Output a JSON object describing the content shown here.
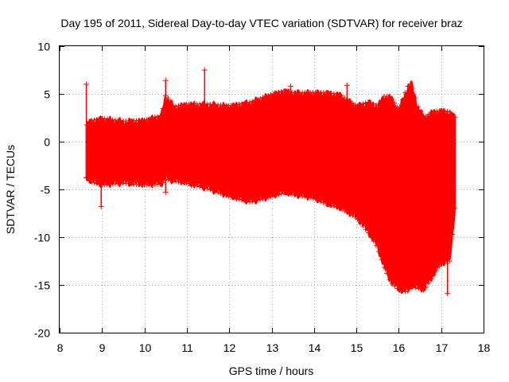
{
  "chart_data": {
    "type": "scatter",
    "title": "Day 195 of 2011, Sidereal Day-to-day VTEC variation (SDTVAR) for receiver braz",
    "xlabel": "GPS time / hours",
    "ylabel": "SDTVAR / TECUs",
    "xlim": [
      8,
      18
    ],
    "ylim": [
      -20,
      10
    ],
    "xticks": [
      8,
      9,
      10,
      11,
      12,
      13,
      14,
      15,
      16,
      17,
      18
    ],
    "yticks": [
      -20,
      -15,
      -10,
      -5,
      0,
      5,
      10
    ],
    "grid": true,
    "marker": "+",
    "color": "#ff0000",
    "envelope": {
      "x": [
        8.63,
        8.7,
        9.0,
        9.5,
        10.0,
        10.4,
        10.5,
        10.7,
        11.0,
        11.5,
        12.0,
        12.5,
        13.0,
        13.3,
        13.5,
        14.0,
        14.3,
        14.6,
        15.0,
        15.3,
        15.5,
        15.65,
        15.8,
        16.0,
        16.2,
        16.3,
        16.45,
        16.6,
        16.8,
        17.0,
        17.2,
        17.33
      ],
      "upper": [
        1.6,
        2.0,
        2.3,
        2.0,
        2.1,
        2.6,
        4.8,
        3.5,
        3.8,
        3.8,
        3.6,
        4.0,
        4.8,
        5.2,
        5.0,
        5.0,
        5.0,
        4.8,
        3.6,
        4.0,
        3.6,
        4.6,
        4.6,
        3.2,
        5.6,
        6.0,
        3.6,
        2.4,
        3.0,
        3.1,
        3.0,
        2.4
      ],
      "lower": [
        -3.6,
        -4.0,
        -4.4,
        -4.2,
        -4.4,
        -4.3,
        -3.8,
        -4.0,
        -4.2,
        -4.8,
        -5.6,
        -6.2,
        -5.6,
        -5.2,
        -5.4,
        -5.8,
        -6.4,
        -6.8,
        -7.8,
        -9.5,
        -11.0,
        -13.0,
        -14.5,
        -15.4,
        -15.6,
        -15.0,
        -15.2,
        -15.4,
        -14.0,
        -12.6,
        -12.6,
        -6.8
      ]
    },
    "spikes": [
      {
        "x": 8.63,
        "ymin": -3.8,
        "ymax": 6.0
      },
      {
        "x": 8.98,
        "ymin": -6.8,
        "ymax": 2.4
      },
      {
        "x": 10.5,
        "ymin": -5.3,
        "ymax": 6.4
      },
      {
        "x": 11.1,
        "ymin": -4.6,
        "ymax": 3.9
      },
      {
        "x": 11.42,
        "ymin": -1.0,
        "ymax": 7.5
      },
      {
        "x": 13.45,
        "ymin": -5.4,
        "ymax": 5.8
      },
      {
        "x": 14.78,
        "ymin": 4.3,
        "ymax": 5.9
      },
      {
        "x": 17.15,
        "ymin": -15.9,
        "ymax": -8.5
      }
    ]
  }
}
